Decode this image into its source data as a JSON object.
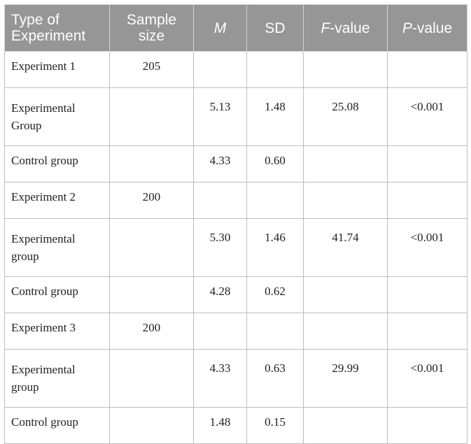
{
  "table": {
    "headers": {
      "type": "Type of Experiment",
      "sample": "Sample size",
      "m": "M",
      "sd": "SD",
      "f_italic": "F",
      "f_rest": "-value",
      "p_italic": "P",
      "p_rest": "-value"
    },
    "rows": [
      {
        "type": "Experiment 1",
        "sample": "205",
        "m": "",
        "sd": "",
        "f": "",
        "p": ""
      },
      {
        "type": "Experimental Group",
        "sample": "",
        "m": "5.13",
        "sd": "1.48",
        "f": "25.08",
        "p": "<0.001"
      },
      {
        "type": "Control group",
        "sample": "",
        "m": "4.33",
        "sd": "0.60",
        "f": "",
        "p": ""
      },
      {
        "type": "Experiment 2",
        "sample": "200",
        "m": "",
        "sd": "",
        "f": "",
        "p": ""
      },
      {
        "type": "Experimental group",
        "sample": "",
        "m": "5.30",
        "sd": "1.46",
        "f": "41.74",
        "p": "<0.001"
      },
      {
        "type": "Control group",
        "sample": "",
        "m": "4.28",
        "sd": "0.62",
        "f": "",
        "p": ""
      },
      {
        "type": "Experiment 3",
        "sample": "200",
        "m": "",
        "sd": "",
        "f": "",
        "p": ""
      },
      {
        "type": "Experimental group",
        "sample": "",
        "m": "4.33",
        "sd": "0.63",
        "f": "29.99",
        "p": "<0.001"
      },
      {
        "type": "Control group",
        "sample": "",
        "m": "1.48",
        "sd": "0.15",
        "f": "",
        "p": ""
      }
    ]
  }
}
